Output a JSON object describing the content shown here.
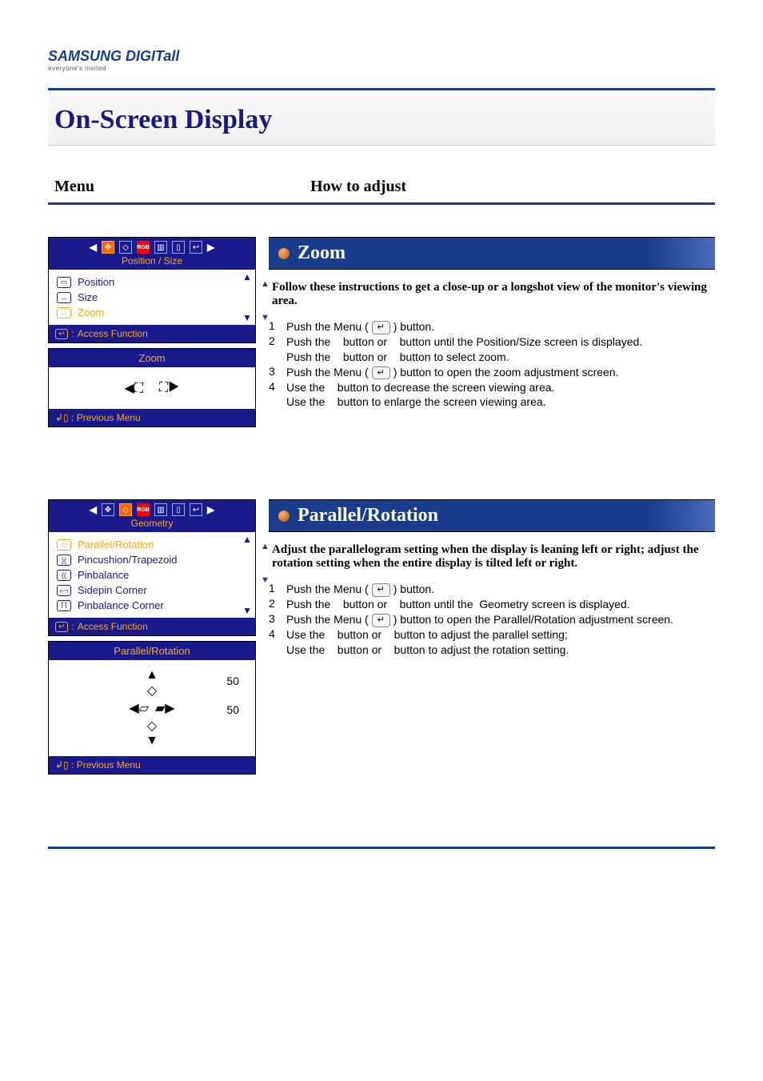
{
  "logo": {
    "brand": "SAMSUNG DIGITall",
    "tag": "everyone's invited"
  },
  "page_title": "On-Screen Display",
  "headers": {
    "menu": "Menu",
    "howto": "How to adjust"
  },
  "zoom": {
    "osd_top_label": "Position / Size",
    "list": [
      {
        "label": "Position",
        "selected": false
      },
      {
        "label": "Size",
        "selected": false
      },
      {
        "label": "Zoom",
        "selected": true
      }
    ],
    "access": "Access Function",
    "box2_title": "Zoom",
    "prev": "Previous Menu",
    "section_title": "Zoom",
    "desc": "Follow these instructions to get a close-up or a longshot view of the monitor's viewing area.",
    "steps": [
      {
        "n": "1",
        "t": "Push the Menu ( ↵ ) button."
      },
      {
        "n": "2",
        "t": "Push the   button or   button until the Position/Size screen is displayed. Push the   button or   button to select zoom."
      },
      {
        "n": "3",
        "t": "Push the Menu ( ↵ ) button to open the zoom adjustment screen."
      },
      {
        "n": "4",
        "t": "Use the   button to decrease the screen viewing area. Use the   button to enlarge the screen viewing area."
      }
    ]
  },
  "parallel": {
    "osd_top_label": "Geometry",
    "list": [
      {
        "label": "Parallel/Rotation",
        "selected": true
      },
      {
        "label": "Pincushion/Trapezoid",
        "selected": false
      },
      {
        "label": "Pinbalance",
        "selected": false
      },
      {
        "label": "Sidepin Corner",
        "selected": false
      },
      {
        "label": "Pinbalance Corner",
        "selected": false
      }
    ],
    "access": "Access Function",
    "box2_title": "Parallel/Rotation",
    "val1": "50",
    "val2": "50",
    "prev": "Previous Menu",
    "section_title": "Parallel/Rotation",
    "desc": "Adjust the parallelogram setting when the display is leaning left or right; adjust the rotation setting when the entire display is tilted left or right.",
    "steps": [
      {
        "n": "1",
        "t": "Push the Menu ( ↵ ) button."
      },
      {
        "n": "2",
        "t": "Push the   button or   button until the  Geometry screen is displayed."
      },
      {
        "n": "3",
        "t": "Push the Menu ( ↵ ) button to open the Parallel/Rotation adjustment screen."
      },
      {
        "n": "4",
        "t": "Use the   button or   button to adjust the parallel setting; Use the   button or   button to adjust the rotation setting."
      }
    ]
  },
  "colors": {
    "header_blue": "#1a3c8c",
    "osd_blue": "#1a1a8c",
    "osd_amber": "#f9a825"
  }
}
